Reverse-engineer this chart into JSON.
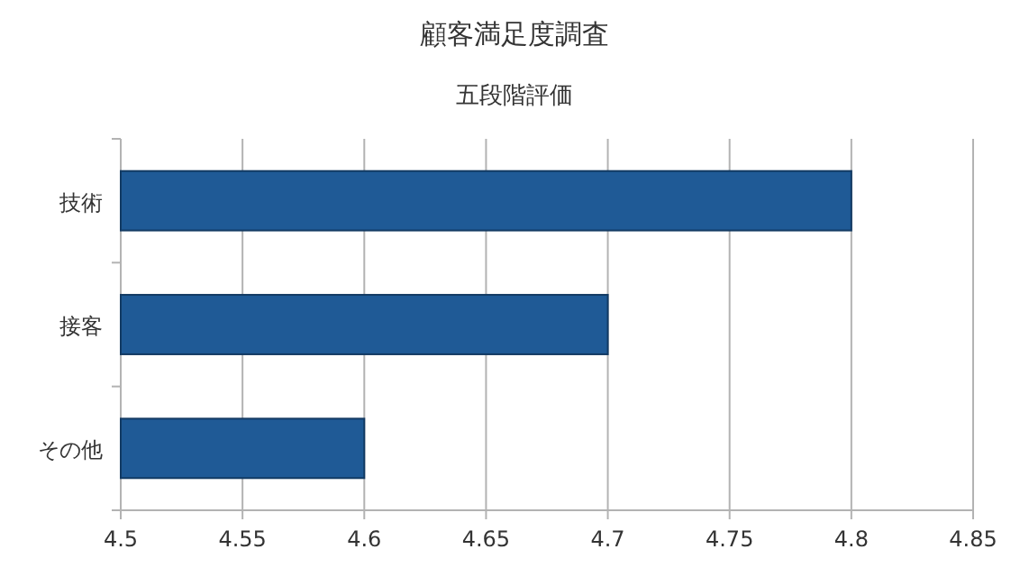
{
  "chart_data": {
    "type": "bar",
    "orientation": "horizontal",
    "title": "顧客満足度調査",
    "subtitle": "五段階評価",
    "categories": [
      "技術",
      "接客",
      "その他"
    ],
    "values": [
      4.8,
      4.7,
      4.6
    ],
    "color": "#1f5a96",
    "xlim": [
      4.5,
      4.85
    ],
    "xticks": [
      4.5,
      4.55,
      4.6,
      4.65,
      4.7,
      4.75,
      4.8,
      4.85
    ],
    "grid": "x"
  }
}
